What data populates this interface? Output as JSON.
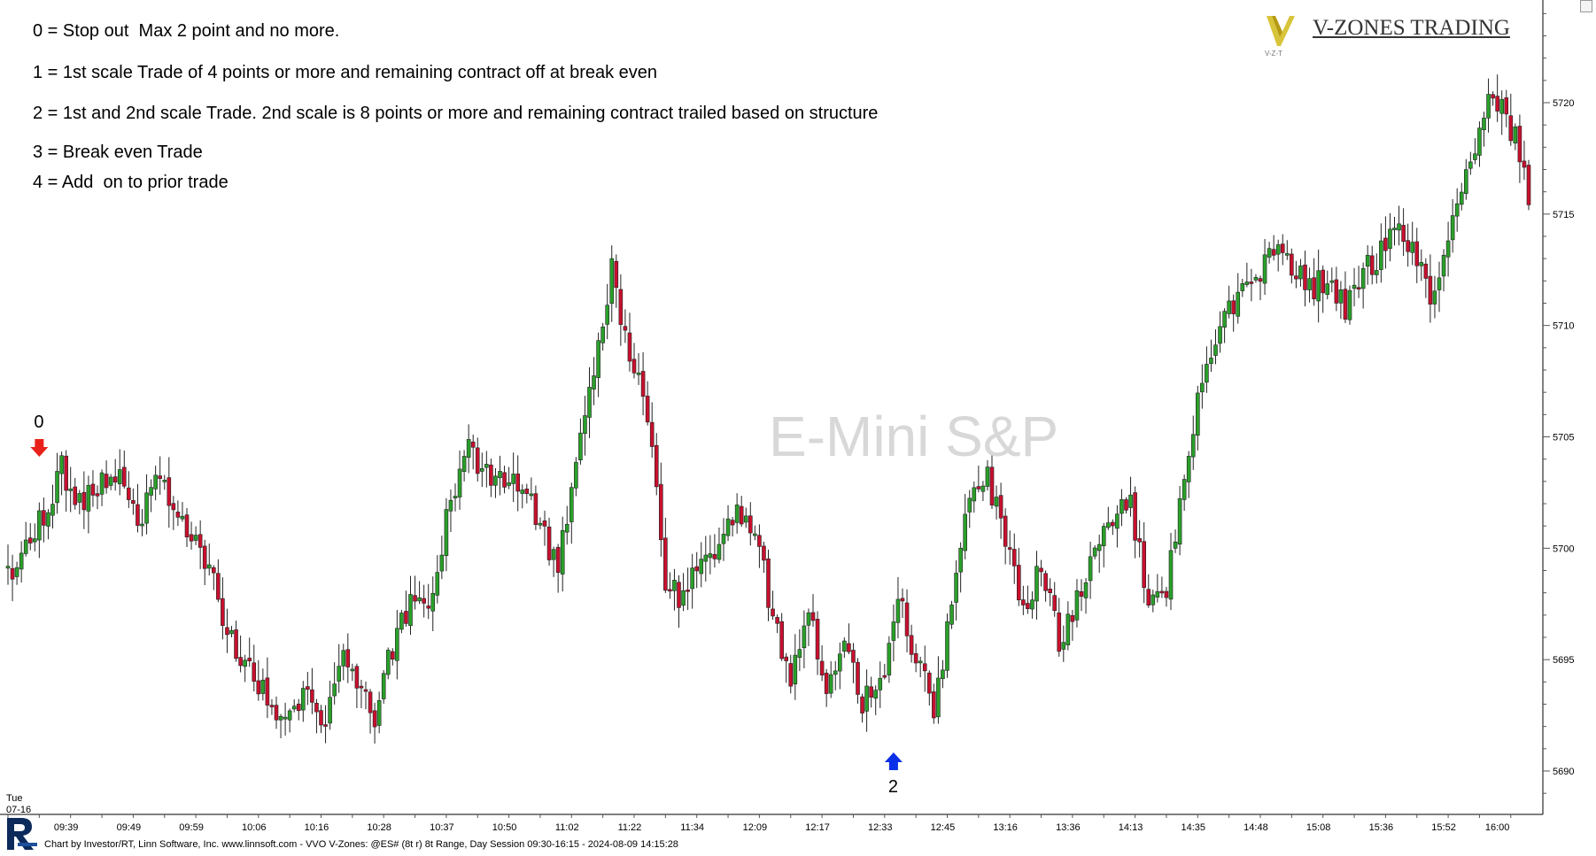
{
  "legend": [
    "0 = Stop out  Max 2 point and no more.",
    "1 = 1st scale Trade of 4 points or more and remaining contract off at break even",
    "2 = 1st and 2nd scale Trade. 2nd scale is 8 points or more and remaining contract trailed based on structure",
    "3 = Break even Trade",
    "4 = Add  on to prior trade"
  ],
  "brand": {
    "name": "V-ZONES TRADING",
    "mark_text": "V-Z-T",
    "mark_color": "#c9b31a"
  },
  "watermark": "E-Mini S&P",
  "footer": "Chart by Investor/RT, Linn Software, Inc. www.linnsoft.com - VVO V-Zones: @ES# (8t r) 8t Range, Day Session 09:30-16:15 - 2024-08-09 14:15:28",
  "day_label": {
    "day": "Tue",
    "date": "07-16"
  },
  "markers": [
    {
      "label": "0",
      "direction": "down",
      "color": "#e8211a",
      "bar_index": 7
    },
    {
      "label": "2",
      "direction": "up",
      "color": "#0a2fe8",
      "bar_index": 198
    }
  ],
  "colors": {
    "up_candle": "#2aa02a",
    "down_candle": "#c8102e",
    "axis": "#000000",
    "background": "#ffffff"
  },
  "chart_data": {
    "type": "candlestick",
    "instrument": "@ES#",
    "y_ticks": [
      5690,
      5695,
      5700,
      5705,
      5710,
      5715,
      5720
    ],
    "ylim": [
      5687,
      5724
    ],
    "x_ticks": [
      "09:39",
      "09:49",
      "09:59",
      "10:06",
      "10:16",
      "10:28",
      "10:37",
      "10:50",
      "11:02",
      "11:22",
      "11:34",
      "12:09",
      "12:17",
      "12:33",
      "12:45",
      "13:16",
      "13:36",
      "14:13",
      "14:35",
      "14:48",
      "15:08",
      "15:36",
      "15:52",
      "16:00"
    ],
    "x_tick_bar_index": [
      13,
      27,
      41,
      55,
      69,
      83,
      97,
      111,
      125,
      139,
      153,
      167,
      181,
      195,
      209,
      223,
      237,
      251,
      265,
      279,
      293,
      307,
      321,
      333
    ],
    "bar_count": 341,
    "close_path": [
      [
        0,
        5698.6
      ],
      [
        4,
        5700.2
      ],
      [
        8,
        5701.5
      ],
      [
        12,
        5703.6
      ],
      [
        16,
        5702
      ],
      [
        20,
        5702.6
      ],
      [
        25,
        5703.8
      ],
      [
        29,
        5700.6
      ],
      [
        33,
        5703.7
      ],
      [
        37,
        5702.1
      ],
      [
        42,
        5700.2
      ],
      [
        46,
        5698.5
      ],
      [
        50,
        5695.7
      ],
      [
        54,
        5694.4
      ],
      [
        58,
        5693.2
      ],
      [
        62,
        5692.3
      ],
      [
        66,
        5693.6
      ],
      [
        70,
        5691.5
      ],
      [
        74,
        5695.1
      ],
      [
        78,
        5694.3
      ],
      [
        82,
        5692.4
      ],
      [
        86,
        5695.6
      ],
      [
        90,
        5697.4
      ],
      [
        95,
        5697.8
      ],
      [
        99,
        5702.2
      ],
      [
        103,
        5704.4
      ],
      [
        107,
        5703.3
      ],
      [
        111,
        5703.3
      ],
      [
        115,
        5702.5
      ],
      [
        119,
        5701.1
      ],
      [
        123,
        5699.1
      ],
      [
        127,
        5704.2
      ],
      [
        131,
        5707.4
      ],
      [
        135,
        5712.8
      ],
      [
        139,
        5708.5
      ],
      [
        143,
        5706.2
      ],
      [
        147,
        5698.4
      ],
      [
        151,
        5697.6
      ],
      [
        155,
        5699.8
      ],
      [
        159,
        5699.9
      ],
      [
        163,
        5701.7
      ],
      [
        167,
        5701.2
      ],
      [
        171,
        5696.8
      ],
      [
        175,
        5694.2
      ],
      [
        179,
        5697.2
      ],
      [
        183,
        5693.3
      ],
      [
        187,
        5695.6
      ],
      [
        191,
        5693.2
      ],
      [
        195,
        5693.8
      ],
      [
        199,
        5697.9
      ],
      [
        203,
        5695.1
      ],
      [
        207,
        5692.8
      ],
      [
        211,
        5697.5
      ],
      [
        215,
        5702.7
      ],
      [
        219,
        5703.2
      ],
      [
        223,
        5700.1
      ],
      [
        227,
        5697.4
      ],
      [
        231,
        5699.2
      ],
      [
        235,
        5695.7
      ],
      [
        239,
        5697.7
      ],
      [
        243,
        5700.3
      ],
      [
        247,
        5701.4
      ],
      [
        251,
        5702.1
      ],
      [
        255,
        5697.3
      ],
      [
        259,
        5697.8
      ],
      [
        263,
        5703.6
      ],
      [
        267,
        5707.5
      ],
      [
        271,
        5709.6
      ],
      [
        275,
        5711.5
      ],
      [
        279,
        5712.1
      ],
      [
        283,
        5713.2
      ],
      [
        287,
        5712.9
      ],
      [
        291,
        5711.6
      ],
      [
        295,
        5712.1
      ],
      [
        299,
        5710.8
      ],
      [
        303,
        5712.3
      ],
      [
        307,
        5713.2
      ],
      [
        311,
        5714.4
      ],
      [
        315,
        5713.1
      ],
      [
        319,
        5711.1
      ],
      [
        323,
        5715.2
      ],
      [
        327,
        5717.2
      ],
      [
        331,
        5720.2
      ],
      [
        335,
        5719.5
      ],
      [
        339,
        5717.2
      ],
      [
        340,
        5715.1
      ]
    ],
    "price_range_low": 5690.3,
    "price_range_high": 5721.2
  }
}
